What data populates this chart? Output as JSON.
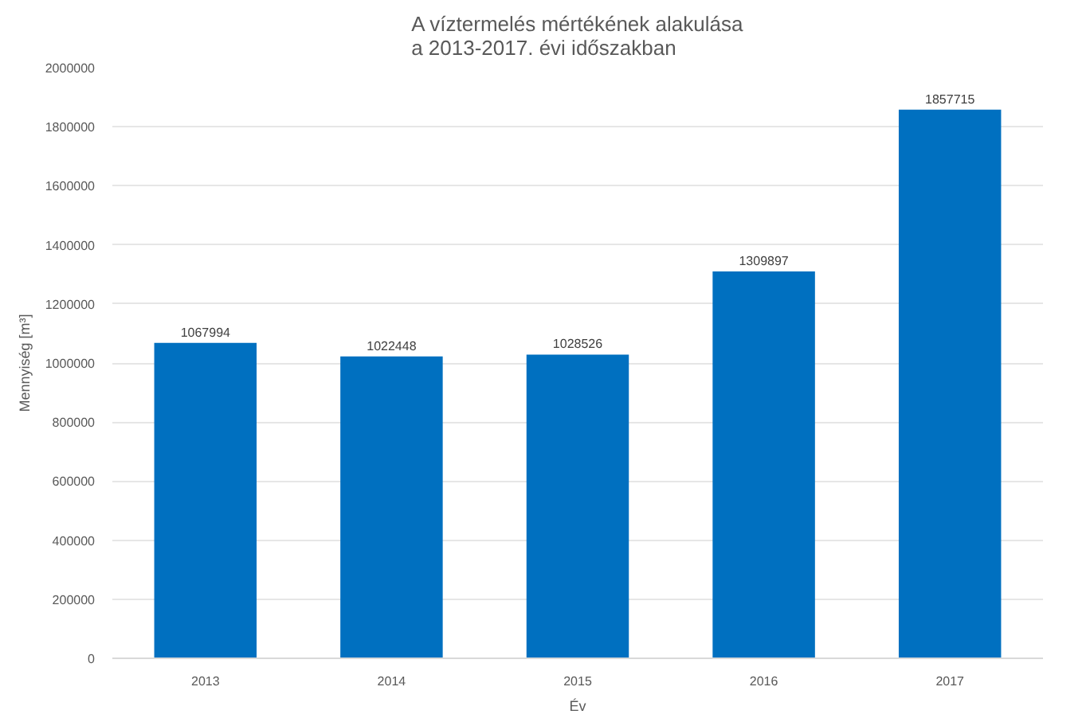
{
  "chart_data": {
    "type": "bar",
    "title": "A víztermelés mértékének alakulása\na 2013-2017. évi időszakban",
    "xlabel": "Év",
    "ylabel": "Mennyiség [m³]",
    "categories": [
      "2013",
      "2014",
      "2015",
      "2016",
      "2017"
    ],
    "values": [
      1067994,
      1022448,
      1028526,
      1309897,
      1857715
    ],
    "color": "#0070c0",
    "ylim": [
      0,
      2000000
    ],
    "yticks": [
      0,
      200000,
      400000,
      600000,
      800000,
      1000000,
      1200000,
      1400000,
      1600000,
      1800000,
      2000000
    ],
    "grid": "y",
    "data_labels": true
  }
}
